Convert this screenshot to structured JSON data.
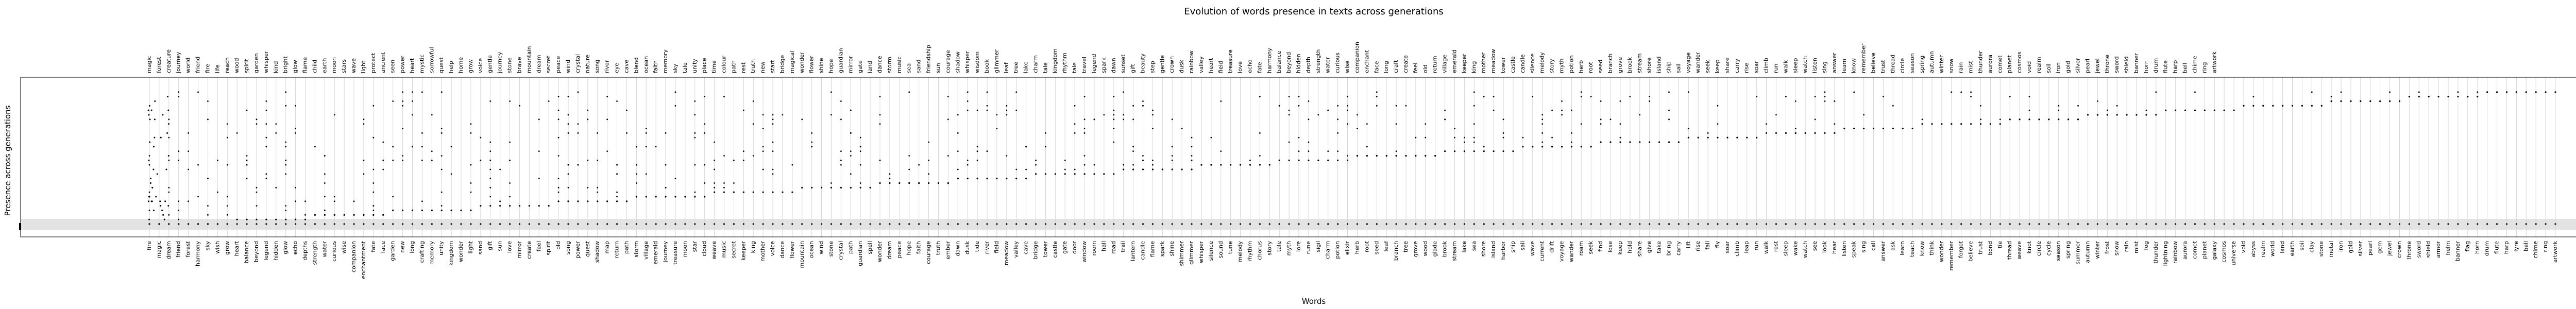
{
  "chart_data": {
    "type": "scatter",
    "title": "Evolution of words presence in texts across generations",
    "xlabel": "Words",
    "ylabel": "Presence across generations",
    "grid": true,
    "bottom_words": [
      "fire",
      "magic",
      "dream",
      "friend",
      "forest",
      "harmony",
      "sky",
      "wish",
      "grow",
      "heart",
      "balance",
      "beyond",
      "legend",
      "hidden",
      "glow",
      "echo",
      "depths",
      "strength",
      "water",
      "curious",
      "wise",
      "companion",
      "enchantment",
      "fate",
      "face",
      "garden",
      "new",
      "long",
      "crafting",
      "memory",
      "unity",
      "kingdom",
      "wonder",
      "light",
      "sand",
      "gift",
      "sun",
      "love",
      "mirror",
      "create",
      "feel",
      "spirit",
      "old",
      "song",
      "power",
      "quest",
      "shadow",
      "map",
      "return",
      "path",
      "storm",
      "village",
      "emerald",
      "journey",
      "treasure",
      "moon",
      "star",
      "cloud",
      "weave",
      "music",
      "secret",
      "keeper",
      "king",
      "mother",
      "voice",
      "dance",
      "flower",
      "mountain",
      "ocean",
      "wind",
      "stone",
      "crystal",
      "path",
      "guardian",
      "spell",
      "wonder",
      "dream",
      "peace",
      "hope",
      "faith",
      "courage",
      "truth",
      "ember",
      "dawn",
      "dusk",
      "tide",
      "river",
      "field",
      "meadow",
      "valley",
      "cave",
      "bridge",
      "tower",
      "castle",
      "gate",
      "door",
      "window",
      "room",
      "hall",
      "road",
      "trail",
      "lantern",
      "candle",
      "flame",
      "spark",
      "shine",
      "shimmer",
      "glimmer",
      "whisper",
      "silence",
      "sound",
      "tune",
      "melody",
      "rhythm",
      "chorus",
      "story",
      "tale",
      "myth",
      "lore",
      "rune",
      "sigil",
      "charm",
      "potion",
      "elixir",
      "herb",
      "root",
      "seed",
      "leaf",
      "branch",
      "tree",
      "grove",
      "wood",
      "glade",
      "brook",
      "stream",
      "lake",
      "sea",
      "shore",
      "island",
      "harbor",
      "ship",
      "sail",
      "wave",
      "current",
      "drift",
      "voyage",
      "wander",
      "roam",
      "seek",
      "find",
      "lose",
      "keep",
      "hold",
      "share",
      "give",
      "take",
      "bring",
      "carry",
      "lift",
      "rise",
      "fall",
      "fly",
      "soar",
      "climb",
      "leap",
      "run",
      "walk",
      "rest",
      "sleep",
      "wake",
      "watch",
      "see",
      "look",
      "hear",
      "listen",
      "speak",
      "sing",
      "call",
      "answer",
      "ask",
      "learn",
      "teach",
      "know",
      "think",
      "wonder",
      "remember",
      "forget",
      "believe",
      "trust",
      "bond",
      "tie",
      "thread",
      "weave",
      "knot",
      "circle",
      "cycle",
      "season",
      "spring",
      "summer",
      "autumn",
      "winter",
      "frost",
      "snow",
      "rain",
      "mist",
      "fog",
      "thunder",
      "lightning",
      "rainbow",
      "aurora",
      "comet",
      "planet",
      "galaxy",
      "cosmos",
      "universe",
      "void",
      "abyss",
      "realm",
      "world",
      "land",
      "earth",
      "soil",
      "clay",
      "stone",
      "metal",
      "iron",
      "gold",
      "silver",
      "pearl",
      "gem",
      "jewel",
      "crown",
      "throne",
      "sword",
      "shield",
      "armor",
      "helm",
      "banner",
      "flag",
      "horn",
      "drum",
      "flute",
      "harp",
      "lyre",
      "bell",
      "chime",
      "ring",
      "artwork"
    ],
    "top_words": [
      "magic",
      "forest",
      "creature",
      "journey",
      "world",
      "friend",
      "fire",
      "life",
      "reach",
      "wood",
      "spirit",
      "garden",
      "whisper",
      "kind",
      "bright",
      "glow",
      "flame",
      "child",
      "earth",
      "moon",
      "stars",
      "wave",
      "light",
      "protect",
      "ancient",
      "seen",
      "power",
      "heart",
      "mystic",
      "sorrowful",
      "quest",
      "help",
      "home",
      "grow",
      "voice",
      "gentle",
      "journey",
      "stone",
      "brave",
      "mountain",
      "dream",
      "secret",
      "peace",
      "wind",
      "crystal",
      "nature",
      "song",
      "river",
      "eye",
      "cave",
      "blend",
      "ocean",
      "faith",
      "memory",
      "sky",
      "tale",
      "unity",
      "place",
      "time",
      "colour",
      "path",
      "rest",
      "truth",
      "new",
      "start",
      "bridge",
      "magical",
      "wonder",
      "flower",
      "shine",
      "hope",
      "guardian",
      "mirror",
      "gate",
      "land",
      "dance",
      "storm",
      "music",
      "sea",
      "sand",
      "friendship",
      "sun",
      "courage",
      "shadow",
      "whisper",
      "wisdom",
      "book",
      "glimmer",
      "leaf",
      "tree",
      "lake",
      "charm",
      "tale",
      "kingdom",
      "rhythm",
      "tale",
      "travel",
      "legend",
      "spark",
      "dawn",
      "sunset",
      "gift",
      "beauty",
      "step",
      "gentle",
      "crown",
      "dusk",
      "rainbow",
      "valley",
      "heart",
      "field",
      "treasure",
      "love",
      "echo",
      "fate",
      "harmony",
      "balance",
      "beyond",
      "hidden",
      "depth",
      "strength",
      "water",
      "curious",
      "wise",
      "companion",
      "enchant",
      "face",
      "long",
      "craft",
      "create",
      "feel",
      "old",
      "return",
      "village",
      "emerald",
      "keeper",
      "king",
      "mother",
      "meadow",
      "tower",
      "castle",
      "candle",
      "silence",
      "melody",
      "story",
      "myth",
      "potion",
      "herb",
      "root",
      "seed",
      "branch",
      "grove",
      "brook",
      "stream",
      "shore",
      "island",
      "ship",
      "sail",
      "voyage",
      "wander",
      "seek",
      "keep",
      "share",
      "carry",
      "rise",
      "soar",
      "climb",
      "run",
      "walk",
      "sleep",
      "watch",
      "listen",
      "sing",
      "answer",
      "learn",
      "know",
      "remember",
      "believe",
      "trust",
      "thread",
      "circle",
      "season",
      "spring",
      "autumn",
      "winter",
      "snow",
      "rain",
      "mist",
      "thunder",
      "aurora",
      "comet",
      "planet",
      "cosmos",
      "void",
      "realm",
      "soil",
      "iron",
      "gold",
      "silver",
      "pearl",
      "jewel",
      "throne",
      "sword",
      "shield",
      "banner",
      "horn",
      "drum",
      "flute",
      "harp",
      "bell",
      "chime",
      "ring",
      "artwork"
    ],
    "ylim": [
      0,
      1
    ],
    "generations": 30
  }
}
